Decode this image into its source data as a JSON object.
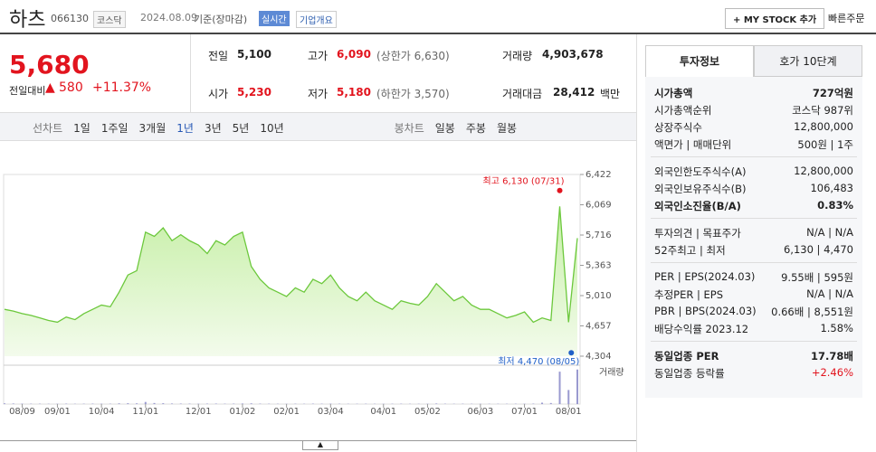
{
  "header": {
    "name": "하츠",
    "code": "066130",
    "market": "코스닥",
    "date": "2024.08.09",
    "basis": "기준(장마감)",
    "realtime": "실시간",
    "company_info": "기업개요",
    "mystock": "+ MY STOCK 추가",
    "quick_order": "빠른주문"
  },
  "quote": {
    "price": "5,680",
    "change_label": "전일대비",
    "change": "580",
    "change_pct": "+11.37%",
    "items": [
      {
        "label": "전일",
        "value": "5,100"
      },
      {
        "label": "고가",
        "value": "6,090",
        "sub": "(상한가 6,630)"
      },
      {
        "label": "거래량",
        "value": "4,903,678"
      },
      {
        "label": "시가",
        "value": "5,230"
      },
      {
        "label": "저가",
        "value": "5,180",
        "sub": "(하한가 3,570)"
      },
      {
        "label": "거래대금",
        "value": "28,412",
        "unit": "백만"
      }
    ]
  },
  "chart_tabs": {
    "line": "선차트",
    "periods": [
      "1일",
      "1주일",
      "3개월",
      "1년",
      "3년",
      "5년",
      "10년"
    ],
    "active": "1년",
    "candle": "봉차트",
    "candle_periods": [
      "일봉",
      "주봉",
      "월봉"
    ]
  },
  "chart_data": {
    "type": "line",
    "color": "#6cc83c",
    "values": [
      4850,
      4830,
      4800,
      4780,
      4750,
      4720,
      4700,
      4760,
      4730,
      4800,
      4850,
      4900,
      4880,
      5050,
      5250,
      5300,
      5750,
      5700,
      5800,
      5650,
      5720,
      5650,
      5600,
      5500,
      5650,
      5600,
      5700,
      5750,
      5350,
      5200,
      5100,
      5050,
      5000,
      5100,
      5050,
      5200,
      5150,
      5250,
      5100,
      5000,
      4950,
      5050,
      4950,
      4900,
      4850,
      4950,
      4920,
      4900,
      5000,
      5150,
      5050,
      4950,
      5000,
      4900,
      4850,
      4850,
      4800,
      4750,
      4780,
      4820,
      4700,
      4750,
      4720,
      6050,
      4700,
      5680
    ],
    "ylim": [
      4304,
      6422
    ],
    "yticks": [
      {
        "value": 6422,
        "label": "6,422"
      },
      {
        "value": 6069,
        "label": "6,069"
      },
      {
        "value": 5716,
        "label": "5,716"
      },
      {
        "value": 5363,
        "label": "5,363"
      },
      {
        "value": 5010,
        "label": "5,010"
      },
      {
        "value": 4657,
        "label": "4,657"
      },
      {
        "value": 4304,
        "label": "4,304"
      }
    ],
    "xticks": [
      {
        "value": 2,
        "label": "08/09"
      },
      {
        "value": 6,
        "label": "09/01"
      },
      {
        "value": 11,
        "label": "10/04"
      },
      {
        "value": 16,
        "label": "11/01"
      },
      {
        "value": 22,
        "label": "12/01"
      },
      {
        "value": 27,
        "label": "01/02"
      },
      {
        "value": 32,
        "label": "02/01"
      },
      {
        "value": 37,
        "label": "03/04"
      },
      {
        "value": 43,
        "label": "04/01"
      },
      {
        "value": 48,
        "label": "05/02"
      },
      {
        "value": 54,
        "label": "06/03"
      },
      {
        "value": 59,
        "label": "07/01"
      },
      {
        "value": 64,
        "label": "08/01"
      }
    ],
    "high": {
      "label": "최고 6,130 (07/31)",
      "value": 6130,
      "index": 63
    },
    "low": {
      "label": "최저 4,470 (08/05)",
      "value": 4470,
      "index": 64
    },
    "volume": {
      "name": "거래량",
      "ylim": [
        0,
        5
      ],
      "values": [
        0.1,
        0.08,
        0.06,
        0.05,
        0.05,
        0.04,
        0.05,
        0.06,
        0.04,
        0.05,
        0.06,
        0.05,
        0.05,
        0.1,
        0.12,
        0.1,
        0.3,
        0.15,
        0.12,
        0.08,
        0.07,
        0.06,
        0.05,
        0.06,
        0.07,
        0.05,
        0.06,
        0.08,
        0.1,
        0.06,
        0.05,
        0.04,
        0.04,
        0.05,
        0.04,
        0.06,
        0.05,
        0.06,
        0.05,
        0.04,
        0.04,
        0.05,
        0.04,
        0.04,
        0.04,
        0.05,
        0.04,
        0.04,
        0.05,
        0.08,
        0.05,
        0.04,
        0.05,
        0.04,
        0.04,
        0.04,
        0.04,
        0.04,
        0.05,
        0.05,
        0.06,
        0.2,
        0.15,
        4.6,
        2.0,
        4.9
      ]
    }
  },
  "info": {
    "tabs": [
      "투자정보",
      "호가 10단계"
    ],
    "groups": [
      [
        {
          "label": "시가총액",
          "value": "727억원",
          "bold": true
        },
        {
          "label": "시가총액순위",
          "value": "코스닥 987위"
        },
        {
          "label": "상장주식수",
          "value": "12,800,000"
        },
        {
          "label": "액면가 | 매매단위",
          "value": "500원 | 1주"
        }
      ],
      [
        {
          "label": "외국인한도주식수(A)",
          "value": "12,800,000"
        },
        {
          "label": "외국인보유주식수(B)",
          "value": "106,483"
        },
        {
          "label": "외국인소진율(B/A)",
          "value": "0.83%",
          "bold": true
        }
      ],
      [
        {
          "label": "투자의견 | 목표주가",
          "value": "N/A | N/A"
        },
        {
          "label": "52주최고 | 최저",
          "value": "6,130 | 4,470"
        }
      ],
      [
        {
          "label": "PER | EPS(2024.03)",
          "value": "9.55배 | 595원"
        },
        {
          "label": "추정PER | EPS",
          "value": "N/A | N/A"
        },
        {
          "label": "PBR | BPS(2024.03)",
          "value": "0.66배 | 8,551원"
        },
        {
          "label": "배당수익률 2023.12",
          "value": "1.58%"
        }
      ],
      [
        {
          "label": "동일업종 PER",
          "value": "17.78배",
          "bold": true
        },
        {
          "label": "동일업종 등락률",
          "value": "+2.46%",
          "up": true
        }
      ]
    ]
  }
}
